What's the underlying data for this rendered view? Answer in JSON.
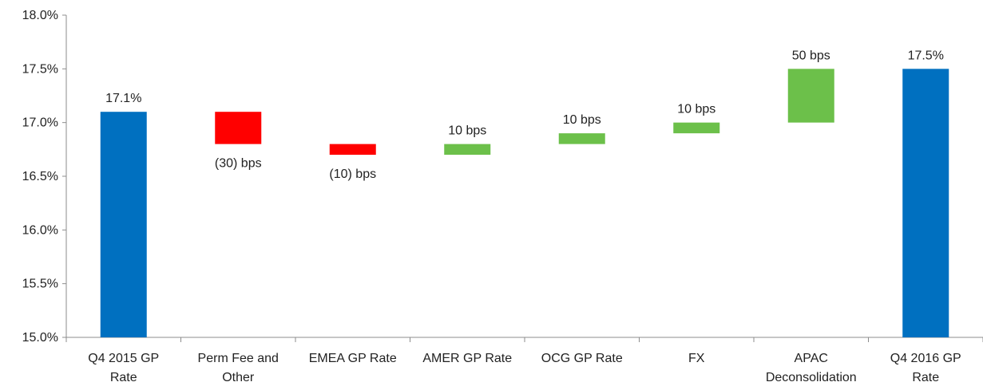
{
  "chart_data": {
    "type": "bar",
    "subtype": "waterfall",
    "title": "",
    "xlabel": "",
    "ylabel": "",
    "ylim": [
      15.0,
      18.0
    ],
    "yticks": [
      "15.0%",
      "15.5%",
      "16.0%",
      "16.5%",
      "17.0%",
      "17.5%",
      "18.0%"
    ],
    "ytick_values": [
      15.0,
      15.5,
      16.0,
      16.5,
      17.0,
      17.5,
      18.0
    ],
    "grid": false,
    "legend": "none",
    "colors": {
      "total": "#0070C0",
      "decrease": "#FF0000",
      "increase": "#6CC04A"
    },
    "bars": [
      {
        "category": [
          "Q4 2015 GP",
          "Rate"
        ],
        "kind": "total",
        "start": 15.0,
        "end": 17.1,
        "label": "17.1%"
      },
      {
        "category": [
          "Perm Fee and",
          "Other"
        ],
        "kind": "decrease",
        "start": 17.1,
        "end": 16.8,
        "label": "(30) bps"
      },
      {
        "category": [
          "EMEA GP Rate"
        ],
        "kind": "decrease",
        "start": 16.8,
        "end": 16.7,
        "label": "(10) bps"
      },
      {
        "category": [
          "AMER GP Rate"
        ],
        "kind": "increase",
        "start": 16.7,
        "end": 16.8,
        "label": "10 bps"
      },
      {
        "category": [
          "OCG GP Rate"
        ],
        "kind": "increase",
        "start": 16.8,
        "end": 16.9,
        "label": "10 bps"
      },
      {
        "category": [
          "FX"
        ],
        "kind": "increase",
        "start": 16.9,
        "end": 17.0,
        "label": "10 bps"
      },
      {
        "category": [
          "APAC",
          "Deconsolidation"
        ],
        "kind": "increase",
        "start": 17.0,
        "end": 17.5,
        "label": "50 bps"
      },
      {
        "category": [
          "Q4 2016 GP",
          "Rate"
        ],
        "kind": "total",
        "start": 15.0,
        "end": 17.5,
        "label": "17.5%"
      }
    ]
  }
}
